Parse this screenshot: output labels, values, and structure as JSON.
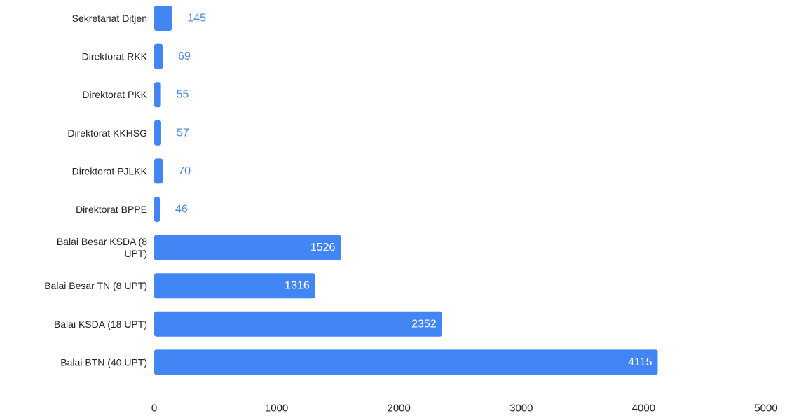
{
  "chart_data": {
    "type": "bar",
    "orientation": "horizontal",
    "title": "",
    "xlabel": "",
    "ylabel": "",
    "xlim": [
      0,
      5000
    ],
    "xticks": [
      0,
      1000,
      2000,
      3000,
      4000,
      5000
    ],
    "xtick_labels": [
      "0",
      "1000",
      "2000",
      "3000",
      "4000",
      "5000"
    ],
    "grid": false,
    "legend": "none",
    "bar_color": "#4285f4",
    "label_outside_color": "#4a86d8",
    "label_inside_color": "#ffffff",
    "categories": [
      {
        "lines": [
          "Sekretariat Ditjen"
        ]
      },
      {
        "lines": [
          "Direktorat RKK"
        ]
      },
      {
        "lines": [
          "Direktorat PKK"
        ]
      },
      {
        "lines": [
          "Direktorat KKHSG"
        ]
      },
      {
        "lines": [
          "Direktorat PJLKK"
        ]
      },
      {
        "lines": [
          "Direktorat BPPE"
        ]
      },
      {
        "lines": [
          "Balai Besar KSDA (8",
          "UPT)"
        ]
      },
      {
        "lines": [
          "Balai Besar TN (8 UPT)"
        ]
      },
      {
        "lines": [
          "Balai KSDA (18 UPT)"
        ]
      },
      {
        "lines": [
          "Balai BTN (40 UPT)"
        ]
      }
    ],
    "values": [
      145,
      69,
      55,
      57,
      70,
      46,
      1526,
      1316,
      2352,
      4115
    ],
    "value_labels": [
      "145",
      "69",
      "55",
      "57",
      "70",
      "46",
      "1526",
      "1316",
      "2352",
      "4115"
    ]
  }
}
